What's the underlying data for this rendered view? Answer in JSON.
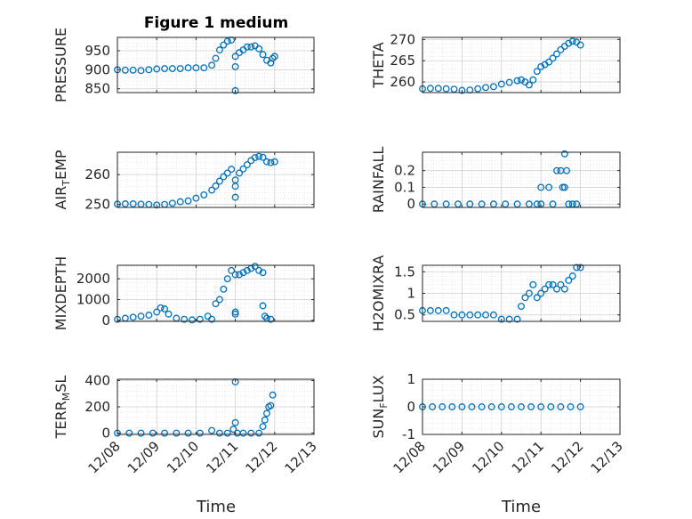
{
  "figure": {
    "title": "Figure 1 medium",
    "marker_color": "#0072BD",
    "x_tick_labels": [
      "12/08",
      "12/09",
      "12/10",
      "12/11",
      "12/12",
      "12/13"
    ],
    "x_label": "Time"
  },
  "chart_data": [
    {
      "type": "scatter",
      "id": "pressure",
      "ylabel_main": "PRESSURE",
      "ylabel_sub": "",
      "ylim": [
        840,
        985
      ],
      "yticks": [
        850,
        900,
        950
      ],
      "ytick_labels": [
        "850",
        "900",
        "950"
      ],
      "xlim": [
        0,
        5
      ],
      "grid": true,
      "title": "Figure 1 medium",
      "x": [
        0.0,
        0.2,
        0.4,
        0.6,
        0.8,
        1.0,
        1.2,
        1.4,
        1.6,
        1.8,
        2.0,
        2.2,
        2.4,
        2.5,
        2.6,
        2.7,
        2.8,
        2.9,
        3.0,
        3.0,
        3.0,
        3.1,
        3.2,
        3.3,
        3.4,
        3.5,
        3.6,
        3.7,
        3.8,
        3.9,
        3.95,
        4.0
      ],
      "y": [
        900,
        899,
        899,
        898,
        900,
        902,
        903,
        903,
        903,
        905,
        905,
        905,
        912,
        930,
        952,
        965,
        975,
        978,
        935,
        908,
        845,
        945,
        952,
        960,
        960,
        963,
        955,
        940,
        925,
        918,
        930,
        935
      ]
    },
    {
      "type": "scatter",
      "id": "theta",
      "ylabel_main": "THETA",
      "ylabel_sub": "",
      "ylim": [
        257.5,
        270.5
      ],
      "yticks": [
        260,
        265,
        270
      ],
      "ytick_labels": [
        "260",
        "265",
        "270"
      ],
      "xlim": [
        0,
        5
      ],
      "grid": true,
      "x": [
        0.0,
        0.2,
        0.4,
        0.6,
        0.8,
        1.0,
        1.2,
        1.4,
        1.6,
        1.8,
        2.0,
        2.2,
        2.4,
        2.5,
        2.6,
        2.7,
        2.8,
        2.9,
        3.0,
        3.1,
        3.2,
        3.3,
        3.4,
        3.5,
        3.6,
        3.7,
        3.8,
        3.9,
        4.0
      ],
      "y": [
        258.4,
        258.5,
        258.5,
        258.4,
        258.3,
        258.0,
        258.1,
        258.4,
        258.7,
        258.9,
        259.5,
        259.9,
        260.3,
        260.5,
        260.0,
        259.3,
        260.5,
        262.5,
        263.6,
        264.1,
        264.7,
        265.6,
        266.6,
        267.6,
        268.4,
        269.1,
        269.6,
        269.4,
        268.7
      ]
    },
    {
      "type": "scatter",
      "id": "air_temp",
      "ylabel_main": "AIR",
      "ylabel_sub": "T",
      "ylabel_tail": "EMP",
      "ylim": [
        249,
        267.5
      ],
      "yticks": [
        250,
        260
      ],
      "ytick_labels": [
        "250",
        "260"
      ],
      "xlim": [
        0,
        5
      ],
      "grid": true,
      "x": [
        0.0,
        0.2,
        0.4,
        0.6,
        0.8,
        1.0,
        1.2,
        1.4,
        1.6,
        1.8,
        2.0,
        2.2,
        2.4,
        2.5,
        2.6,
        2.7,
        2.8,
        2.9,
        3.0,
        3.0,
        3.0,
        3.1,
        3.2,
        3.3,
        3.4,
        3.5,
        3.6,
        3.7,
        3.8,
        3.9,
        4.0
      ],
      "y": [
        250.1,
        250.2,
        250.2,
        250.1,
        250.0,
        249.8,
        250.0,
        250.4,
        250.9,
        251.2,
        252.1,
        253.2,
        254.8,
        256.2,
        257.8,
        259.3,
        260.5,
        261.8,
        258.2,
        256.1,
        252.4,
        260.5,
        261.9,
        263.3,
        264.7,
        265.7,
        266.1,
        265.8,
        264.3,
        264.0,
        264.3
      ]
    },
    {
      "type": "scatter",
      "id": "rainfall",
      "ylabel_main": "RAINFALL",
      "ylabel_sub": "",
      "ylim": [
        -0.02,
        0.31
      ],
      "yticks": [
        0,
        0.1,
        0.2
      ],
      "ytick_labels": [
        "0",
        "0.1",
        "0.2"
      ],
      "xlim": [
        0,
        5
      ],
      "grid": true,
      "x": [
        0.0,
        0.3,
        0.6,
        0.9,
        1.2,
        1.5,
        1.8,
        2.1,
        2.4,
        2.7,
        2.9,
        3.0,
        3.0,
        3.2,
        3.3,
        3.4,
        3.5,
        3.55,
        3.6,
        3.6,
        3.65,
        3.7,
        3.8,
        3.9
      ],
      "y": [
        0,
        0,
        0,
        0,
        0,
        0,
        0,
        0,
        0,
        0,
        0,
        0.1,
        0,
        0.1,
        0,
        0.2,
        0.2,
        0.1,
        0.3,
        0.1,
        0.2,
        0,
        0,
        0
      ]
    },
    {
      "type": "scatter",
      "id": "mixdepth",
      "ylabel_main": "MIXDEPTH",
      "ylabel_sub": "",
      "ylim": [
        -50,
        2650
      ],
      "yticks": [
        0,
        1000,
        2000
      ],
      "ytick_labels": [
        "0",
        "1000",
        "2000"
      ],
      "xlim": [
        0,
        5
      ],
      "grid": true,
      "x": [
        0.0,
        0.2,
        0.4,
        0.6,
        0.8,
        1.0,
        1.1,
        1.2,
        1.3,
        1.5,
        1.7,
        1.9,
        2.1,
        2.3,
        2.4,
        2.5,
        2.6,
        2.7,
        2.8,
        2.9,
        3.0,
        3.0,
        3.0,
        3.1,
        3.2,
        3.3,
        3.4,
        3.5,
        3.6,
        3.7,
        3.7,
        3.75,
        3.8,
        3.9
      ],
      "y": [
        50,
        100,
        150,
        200,
        250,
        400,
        600,
        550,
        300,
        100,
        50,
        20,
        50,
        200,
        50,
        800,
        1000,
        1500,
        2000,
        2400,
        2200,
        400,
        300,
        2200,
        2300,
        2400,
        2500,
        2600,
        2400,
        2300,
        700,
        200,
        100,
        50
      ]
    },
    {
      "type": "scatter",
      "id": "h2omixra",
      "ylabel_main": "H2OMIXRA",
      "ylabel_sub": "",
      "ylim": [
        0.35,
        1.65
      ],
      "yticks": [
        0.5,
        1,
        1.5
      ],
      "ytick_labels": [
        "0.5",
        "1",
        "1.5"
      ],
      "xlim": [
        0,
        5
      ],
      "grid": true,
      "x": [
        0.0,
        0.2,
        0.4,
        0.6,
        0.8,
        1.0,
        1.2,
        1.4,
        1.6,
        1.8,
        2.0,
        2.2,
        2.4,
        2.5,
        2.6,
        2.7,
        2.8,
        2.9,
        3.0,
        3.1,
        3.2,
        3.3,
        3.4,
        3.5,
        3.6,
        3.7,
        3.8,
        3.9,
        4.0
      ],
      "y": [
        0.6,
        0.6,
        0.6,
        0.6,
        0.5,
        0.5,
        0.5,
        0.5,
        0.5,
        0.5,
        0.4,
        0.4,
        0.4,
        0.7,
        0.9,
        1.0,
        1.2,
        0.9,
        1.0,
        1.1,
        1.2,
        1.2,
        1.1,
        1.2,
        1.1,
        1.3,
        1.4,
        1.6,
        1.6
      ]
    },
    {
      "type": "scatter",
      "id": "terr_msl",
      "ylabel_main": "TERR",
      "ylabel_sub": "M",
      "ylabel_tail": "SL",
      "ylim": [
        -10,
        410
      ],
      "yticks": [
        0,
        200,
        400
      ],
      "ytick_labels": [
        "0",
        "200",
        "400"
      ],
      "xlim": [
        0,
        5
      ],
      "grid": true,
      "x": [
        0.0,
        0.3,
        0.6,
        0.9,
        1.2,
        1.5,
        1.8,
        2.1,
        2.4,
        2.6,
        2.8,
        2.95,
        3.0,
        3.0,
        3.05,
        3.2,
        3.4,
        3.6,
        3.7,
        3.75,
        3.8,
        3.85,
        3.9,
        3.95
      ],
      "y": [
        0,
        0,
        0,
        0,
        0,
        0,
        0,
        0,
        20,
        0,
        0,
        30,
        390,
        80,
        0,
        0,
        0,
        0,
        50,
        100,
        150,
        200,
        210,
        290
      ]
    },
    {
      "type": "scatter",
      "id": "sun_flux",
      "ylabel_main": "SUN",
      "ylabel_sub": "F",
      "ylabel_tail": "LUX",
      "ylim": [
        -1,
        1
      ],
      "yticks": [
        -1,
        0,
        1
      ],
      "ytick_labels": [
        "-1",
        "0",
        "1"
      ],
      "xlim": [
        0,
        5
      ],
      "grid": true,
      "x": [
        0.0,
        0.25,
        0.5,
        0.75,
        1.0,
        1.25,
        1.5,
        1.75,
        2.0,
        2.25,
        2.5,
        2.75,
        3.0,
        3.25,
        3.5,
        3.75,
        4.0
      ],
      "y": [
        0,
        0,
        0,
        0,
        0,
        0,
        0,
        0,
        0,
        0,
        0,
        0,
        0,
        0,
        0,
        0,
        0
      ]
    }
  ]
}
